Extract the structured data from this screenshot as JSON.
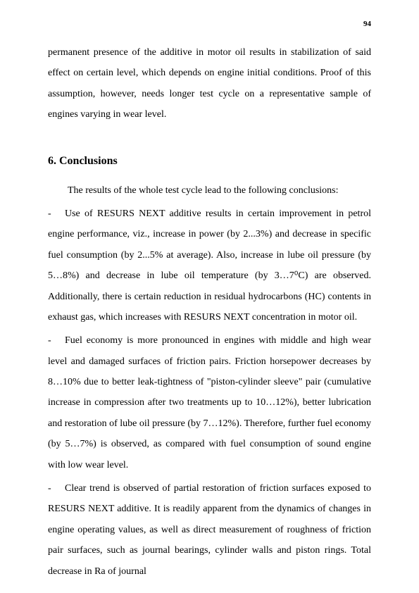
{
  "page_number": "94",
  "intro_text": "permanent presence of the additive in motor oil results in stabilization of said effect on certain level, which depends on engine initial conditions. Proof of this assumption, however, needs longer test cycle on a representative sample of engines varying in wear level.",
  "section_heading": "6. Conclusions",
  "conclusions_intro": "The results of the whole test cycle lead to the following conclusions:",
  "bullet1": "Use of RESURS NEXT additive results in certain improvement in petrol engine performance, viz., increase in power (by 2...3%) and decrease in specific fuel consumption (by 2...5% at average). Also, increase in lube oil pressure (by 5…8%) and decrease in lube oil temperature (by 3…7⁰C) are observed. Additionally, there is certain reduction in residual hydrocarbons (HC) contents in exhaust gas, which increases with RESURS NEXT concentration in motor oil.",
  "bullet2": "Fuel economy is more pronounced in engines with middle and high wear level and damaged surfaces of friction pairs. Friction horsepower decreases by 8…10% due to better leak-tightness of \"piston-cylinder sleeve\" pair (cumulative increase in compression after two treatments up to 10…12%), better lubrication and restoration of lube oil pressure (by 7…12%). Therefore, further fuel economy (by 5…7%) is observed, as compared with fuel consumption of sound engine with low wear level.",
  "bullet3": "Clear trend is observed of partial restoration of friction surfaces exposed to RESURS NEXT additive. It is readily apparent from the dynamics of changes in engine operating values, as well as direct measurement of roughness of friction pair surfaces, such as journal bearings, cylinder walls and piston rings. Total decrease in Ra of journal",
  "colors": {
    "background": "#ffffff",
    "text": "#000000"
  },
  "typography": {
    "font_family": "Times New Roman",
    "body_fontsize": 14,
    "heading_fontsize": 16,
    "page_number_fontsize": 11,
    "line_height": 2.1
  }
}
